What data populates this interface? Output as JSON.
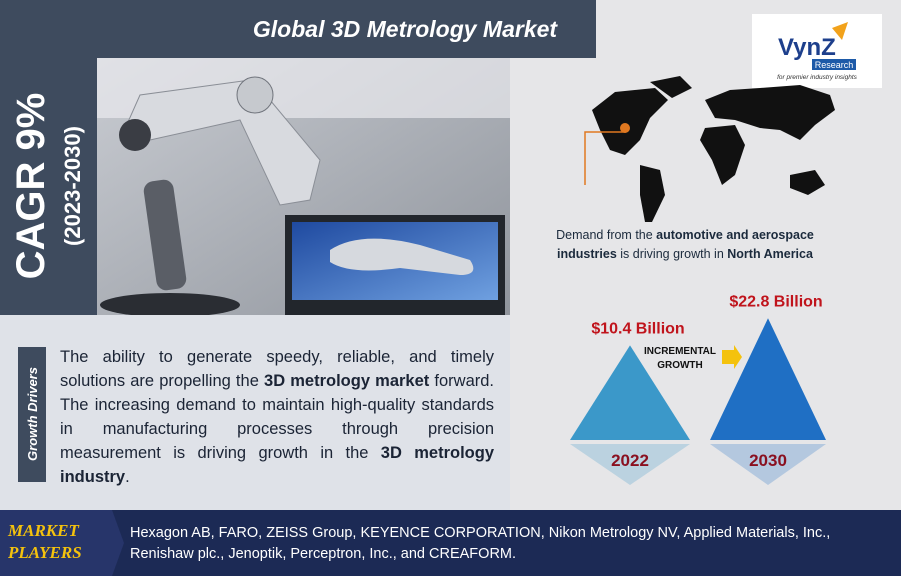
{
  "header": {
    "title": "Global 3D Metrology Market"
  },
  "logo": {
    "name": "VynZ",
    "sub": "Research",
    "tagline": "for premier industry insights"
  },
  "cagr": {
    "label": "CAGR 9%",
    "period": "(2023-2030)"
  },
  "map_caption": [
    {
      "text": "Demand from the ",
      "bold": false
    },
    {
      "text": "automotive and aerospace industries",
      "bold": true
    },
    {
      "text": " is driving growth in ",
      "bold": false
    },
    {
      "text": "North America",
      "bold": true
    }
  ],
  "growth_drivers": {
    "label": "Growth Drivers",
    "text": [
      {
        "text": "The ability to generate speedy, reliable, and timely solutions are propelling the ",
        "bold": false
      },
      {
        "text": "3D metrology market",
        "bold": true
      },
      {
        "text": " forward. The increasing demand to maintain high-quality standards in manufacturing processes through precision measurement is driving growth in the ",
        "bold": false
      },
      {
        "text": "3D metrology industry",
        "bold": true
      },
      {
        "text": ".",
        "bold": false
      }
    ]
  },
  "market_size": {
    "items": [
      {
        "year": "2022",
        "value": 10.4,
        "value_label": "$10.4 Billion",
        "color": "#3b98c9"
      },
      {
        "year": "2030",
        "value": 22.8,
        "value_label": "$22.8 Billion",
        "color": "#1f6fc4"
      }
    ],
    "incremental": [
      "INCREMENTAL",
      "GROWTH"
    ]
  },
  "market_players": {
    "label": [
      "MARKET",
      "PLAYERS"
    ],
    "text": "Hexagon AB, FARO, ZEISS Group, KEYENCE CORPORATION, Nikon Metrology NV, Applied Materials, Inc., Renishaw plc., Jenoptik, Perceptron, Inc., and CREAFORM."
  }
}
